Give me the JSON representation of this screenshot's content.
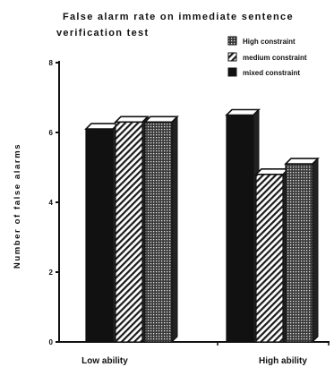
{
  "chart_data": {
    "type": "bar",
    "title": "False alarm rate on immediate sentence verification test",
    "title_lines": [
      "False alarm rate on immediate sentence",
      "verification test"
    ],
    "ylabel": "Number of false alarms",
    "xlabel": "",
    "categories": [
      "Low ability",
      "High ability"
    ],
    "ylim": [
      0,
      8
    ],
    "yticks": [
      0,
      2,
      4,
      6,
      8
    ],
    "grid": false,
    "legend_position": "top-right",
    "series": [
      {
        "name": "mixed constraint",
        "values": [
          6.1,
          6.5
        ],
        "pattern": "solid",
        "color": "#111111"
      },
      {
        "name": "medium constraint",
        "values": [
          6.3,
          4.8
        ],
        "pattern": "hatch",
        "color": "#222222"
      },
      {
        "name": "High constraint",
        "values": [
          6.3,
          5.1
        ],
        "pattern": "stipple",
        "color": "#333333"
      }
    ],
    "legend_order": [
      2,
      1,
      0
    ]
  }
}
